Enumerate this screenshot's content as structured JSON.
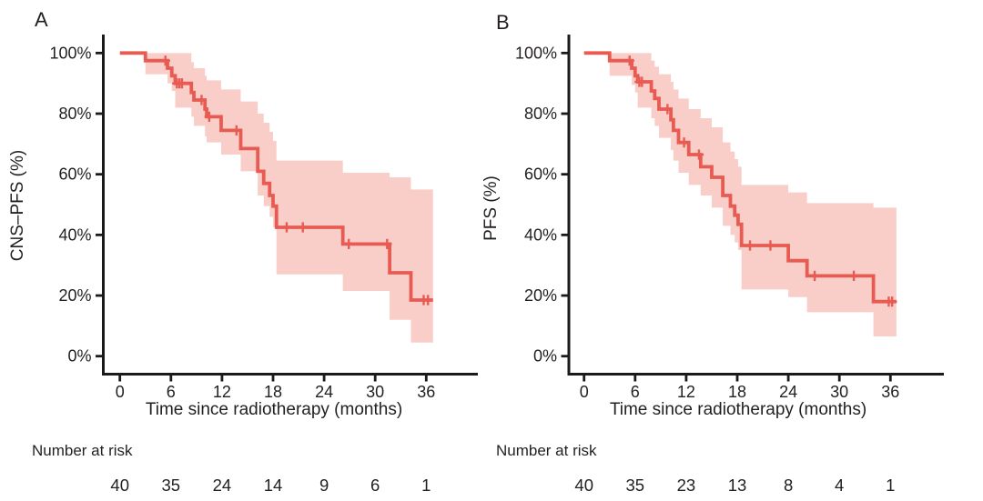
{
  "figure": {
    "line_color": "#e85b52",
    "band_color": "#f9cec9",
    "axis_color": "#1a1a1a",
    "text_color": "#231f20"
  },
  "chart_data": [
    {
      "type": "line",
      "subtype": "kaplan-meier",
      "panel_label": "A",
      "ylabel": "CNS–PFS (%)",
      "xlabel": "Time since radiotherapy (months)",
      "risk_label": "Number at risk",
      "x_ticks": [
        0,
        6,
        12,
        18,
        24,
        30,
        36
      ],
      "y_tick_values": [
        0,
        20,
        40,
        60,
        80,
        100
      ],
      "y_tick_labels": [
        "0%",
        "20%",
        "40%",
        "60%",
        "80%",
        "100%"
      ],
      "xlim": [
        0,
        38.5
      ],
      "ylim": [
        0,
        100
      ],
      "grid": false,
      "legend": "none",
      "number_at_risk": [
        40,
        35,
        24,
        14,
        9,
        6,
        1
      ],
      "km_steps": [
        [
          0,
          100
        ],
        [
          3,
          97.5
        ],
        [
          5.6,
          95
        ],
        [
          6.1,
          92.5
        ],
        [
          6.5,
          90
        ],
        [
          8.4,
          87
        ],
        [
          8.7,
          84.5
        ],
        [
          10.0,
          81.5
        ],
        [
          10.2,
          79
        ],
        [
          11.9,
          74.5
        ],
        [
          14.2,
          68.5
        ],
        [
          16.2,
          61
        ],
        [
          16.9,
          57
        ],
        [
          17.6,
          53
        ],
        [
          18.0,
          49.5
        ],
        [
          18.4,
          42.5
        ],
        [
          26.2,
          37
        ],
        [
          31.7,
          27.5
        ],
        [
          34.2,
          18.5
        ]
      ],
      "end_time": 36.8,
      "censors": [
        [
          5.35,
          97.5
        ],
        [
          6.7,
          90
        ],
        [
          7.0,
          90
        ],
        [
          7.3,
          90
        ],
        [
          9.6,
          84.5
        ],
        [
          10.5,
          79
        ],
        [
          13.7,
          74.5
        ],
        [
          19.6,
          42.5
        ],
        [
          21.5,
          42.5
        ],
        [
          26.9,
          37
        ],
        [
          31.4,
          37
        ],
        [
          35.7,
          18.5
        ],
        [
          36.2,
          18.5
        ]
      ],
      "ci_band": [
        [
          3,
          100,
          93
        ],
        [
          5.6,
          100,
          90
        ],
        [
          6.1,
          100,
          87.5
        ],
        [
          6.5,
          100,
          82
        ],
        [
          8.4,
          97,
          79
        ],
        [
          8.7,
          95,
          76
        ],
        [
          10.0,
          92.5,
          72.5
        ],
        [
          10.2,
          91,
          70.5
        ],
        [
          11.9,
          88,
          66.5
        ],
        [
          14.2,
          84,
          61
        ],
        [
          16.2,
          80,
          53
        ],
        [
          16.9,
          77,
          49.5
        ],
        [
          17.6,
          74,
          46
        ],
        [
          18.0,
          71,
          42.5
        ],
        [
          18.4,
          64.5,
          27
        ],
        [
          26.2,
          60.5,
          21.5
        ],
        [
          31.7,
          59,
          12
        ],
        [
          34.2,
          55,
          4.5
        ]
      ]
    },
    {
      "type": "line",
      "subtype": "kaplan-meier",
      "panel_label": "B",
      "ylabel": "PFS (%)",
      "xlabel": "Time since radiotherapy (months)",
      "risk_label": "Number at risk",
      "x_ticks": [
        0,
        6,
        12,
        18,
        24,
        30,
        36
      ],
      "y_tick_values": [
        0,
        20,
        40,
        60,
        80,
        100
      ],
      "y_tick_labels": [
        "0%",
        "20%",
        "40%",
        "60%",
        "80%",
        "100%"
      ],
      "xlim": [
        0,
        38.5
      ],
      "ylim": [
        0,
        100
      ],
      "grid": false,
      "legend": "none",
      "number_at_risk": [
        40,
        35,
        23,
        13,
        8,
        4,
        1
      ],
      "km_steps": [
        [
          0,
          100
        ],
        [
          3,
          97.5
        ],
        [
          5.6,
          95
        ],
        [
          6.0,
          92.5
        ],
        [
          6.3,
          90.5
        ],
        [
          7.9,
          87.5
        ],
        [
          8.3,
          85
        ],
        [
          8.8,
          81.5
        ],
        [
          10.2,
          78
        ],
        [
          10.5,
          74.5
        ],
        [
          11.1,
          70.5
        ],
        [
          12.3,
          66.5
        ],
        [
          13.7,
          62.5
        ],
        [
          15.0,
          59
        ],
        [
          16.3,
          53
        ],
        [
          17.2,
          49.5
        ],
        [
          17.7,
          46.5
        ],
        [
          18.1,
          43.5
        ],
        [
          18.5,
          36.5
        ],
        [
          24.0,
          31.5
        ],
        [
          26.2,
          26.5
        ],
        [
          34.0,
          18
        ]
      ],
      "end_time": 36.7,
      "censors": [
        [
          5.35,
          97.5
        ],
        [
          6.5,
          90.5
        ],
        [
          6.8,
          90.5
        ],
        [
          9.8,
          81.5
        ],
        [
          11.75,
          70.5
        ],
        [
          13.5,
          66.5
        ],
        [
          19.5,
          36.5
        ],
        [
          21.9,
          36.5
        ],
        [
          27.1,
          26.5
        ],
        [
          31.7,
          26.5
        ],
        [
          35.8,
          18
        ],
        [
          36.2,
          18
        ]
      ],
      "ci_band": [
        [
          3,
          100,
          92.5
        ],
        [
          5.6,
          100,
          89.5
        ],
        [
          6.0,
          100,
          87
        ],
        [
          6.3,
          100,
          82
        ],
        [
          7.9,
          97.5,
          78.5
        ],
        [
          8.3,
          95.5,
          76
        ],
        [
          8.8,
          93,
          72
        ],
        [
          10.2,
          90.5,
          68
        ],
        [
          10.5,
          88,
          64.5
        ],
        [
          11.1,
          85,
          60.5
        ],
        [
          12.3,
          81.5,
          56.5
        ],
        [
          13.7,
          78.5,
          53
        ],
        [
          15.0,
          75.5,
          49
        ],
        [
          16.3,
          70.5,
          43
        ],
        [
          17.2,
          67.5,
          40
        ],
        [
          17.7,
          65,
          37.5
        ],
        [
          18.1,
          62.5,
          35
        ],
        [
          18.5,
          56.5,
          22
        ],
        [
          24.0,
          54,
          19.5
        ],
        [
          26.2,
          50.5,
          14.5
        ],
        [
          34.0,
          49,
          6.5
        ]
      ]
    }
  ]
}
